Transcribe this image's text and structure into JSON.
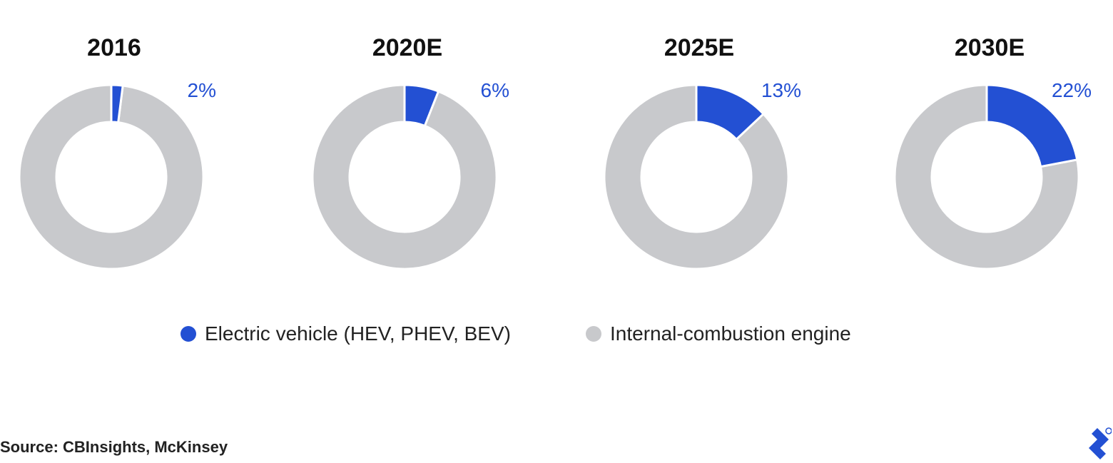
{
  "chart_data": [
    {
      "type": "pie",
      "title": "2016",
      "categories": [
        "Electric vehicle (HEV, PHEV, BEV)",
        "Internal-combustion engine"
      ],
      "values": [
        2,
        98
      ],
      "data_label": "2%"
    },
    {
      "type": "pie",
      "title": "2020E",
      "categories": [
        "Electric vehicle (HEV, PHEV, BEV)",
        "Internal-combustion engine"
      ],
      "values": [
        6,
        94
      ],
      "data_label": "6%"
    },
    {
      "type": "pie",
      "title": "2025E",
      "categories": [
        "Electric vehicle (HEV, PHEV, BEV)",
        "Internal-combustion engine"
      ],
      "values": [
        13,
        87
      ],
      "data_label": "13%"
    },
    {
      "type": "pie",
      "title": "2030E",
      "categories": [
        "Electric vehicle (HEV, PHEV, BEV)",
        "Internal-combustion engine"
      ],
      "values": [
        22,
        78
      ],
      "data_label": "22%"
    }
  ],
  "legend": {
    "placement": "bottom",
    "items": [
      {
        "label": "Electric vehicle (HEV, PHEV, BEV)",
        "color": "#2350D3"
      },
      {
        "label": "Internal-combustion engine",
        "color": "#C8C9CC"
      }
    ]
  },
  "colors": {
    "ev": "#2350D3",
    "ice": "#C8C9CC",
    "pct_label": "#2350D3"
  },
  "source": "Source: CBInsights, McKinsey",
  "logo": {
    "icon": "toptal-logo-icon"
  }
}
